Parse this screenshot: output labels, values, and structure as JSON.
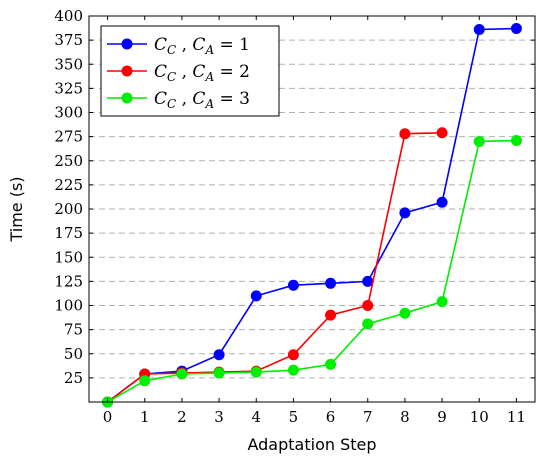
{
  "chart_data": {
    "type": "line",
    "xlabel": "Adaptation Step",
    "ylabel": "Time (s)",
    "xlim": [
      -0.5,
      11.5
    ],
    "ylim": [
      0,
      400
    ],
    "x_ticks": [
      0,
      1,
      2,
      3,
      4,
      5,
      6,
      7,
      8,
      9,
      10,
      11
    ],
    "y_ticks": [
      25,
      50,
      75,
      100,
      125,
      150,
      175,
      200,
      225,
      250,
      275,
      300,
      325,
      350,
      375,
      400
    ],
    "grid": "horizontal-dashed",
    "legend_position": "top-left",
    "series": [
      {
        "name": "C_C , C_A = 1",
        "legend_label": {
          "c1": "C",
          "s1": "C",
          "c2": "C",
          "s2": "A",
          "rest": "= 1"
        },
        "color": "#0000ff",
        "x": [
          0,
          1,
          2,
          3,
          4,
          5,
          6,
          7,
          8,
          9,
          10,
          11
        ],
        "y": [
          0,
          29,
          32,
          49,
          110,
          121,
          123,
          125,
          196,
          207,
          386,
          387
        ]
      },
      {
        "name": "C_C , C_A = 2",
        "legend_label": {
          "c1": "C",
          "s1": "C",
          "c2": "C",
          "s2": "A",
          "rest": "= 2"
        },
        "color": "#ff0000",
        "x": [
          0,
          1,
          2,
          3,
          4,
          5,
          6,
          7,
          8,
          9
        ],
        "y": [
          0,
          29,
          30,
          31,
          32,
          49,
          90,
          100,
          278,
          279
        ]
      },
      {
        "name": "C_C , C_A = 3",
        "legend_label": {
          "c1": "C",
          "s1": "C",
          "c2": "C",
          "s2": "A",
          "rest": "= 3"
        },
        "color": "#00ee00",
        "x": [
          0,
          1,
          2,
          3,
          4,
          5,
          6,
          7,
          8,
          9,
          10,
          11
        ],
        "y": [
          0,
          22,
          29,
          30,
          31,
          33,
          39,
          81,
          92,
          104,
          270,
          271
        ]
      }
    ]
  }
}
